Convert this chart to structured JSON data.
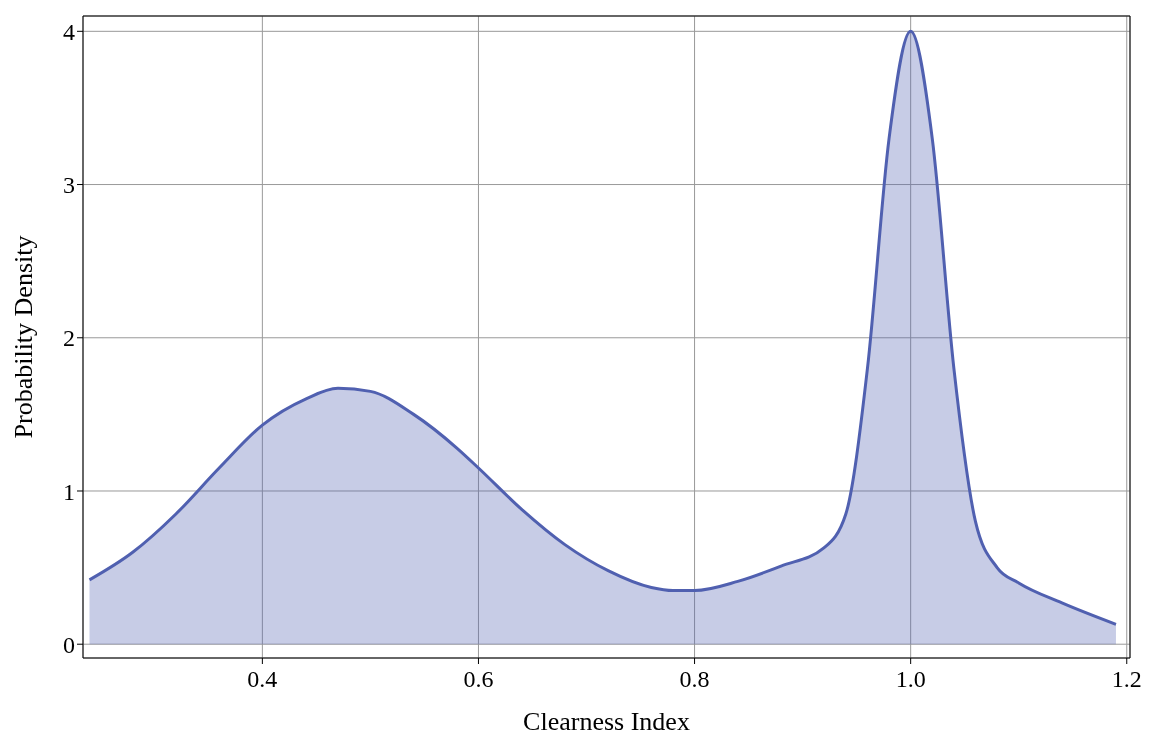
{
  "chart_data": {
    "type": "area",
    "xlabel": "Clearness Index",
    "ylabel": "Probability Density",
    "x": [
      0.24,
      0.28,
      0.32,
      0.36,
      0.4,
      0.44,
      0.47,
      0.5,
      0.54,
      0.58,
      0.6,
      0.64,
      0.68,
      0.72,
      0.76,
      0.78,
      0.8,
      0.84,
      0.88,
      0.92,
      0.94,
      0.96,
      0.98,
      1.0,
      1.02,
      1.04,
      1.06,
      1.08,
      1.1,
      1.14,
      1.19
    ],
    "series": [
      {
        "color": "#5060b0",
        "values": [
          0.42,
          0.6,
          0.85,
          1.15,
          1.43,
          1.6,
          1.67,
          1.65,
          1.5,
          1.28,
          1.15,
          0.88,
          0.65,
          0.48,
          0.37,
          0.35,
          0.35,
          0.41,
          0.51,
          0.63,
          0.85,
          1.8,
          3.3,
          4.0,
          3.3,
          1.8,
          0.8,
          0.5,
          0.4,
          0.27,
          0.13
        ]
      }
    ],
    "xlim": [
      0.234,
      1.203
    ],
    "xticks": [
      {
        "value": 0.4,
        "label": "0.4"
      },
      {
        "value": 0.6,
        "label": "0.6"
      },
      {
        "value": 0.8,
        "label": "0.8"
      },
      {
        "value": 1.0,
        "label": "1.0"
      },
      {
        "value": 1.2,
        "label": "1.2"
      }
    ],
    "ylim": [
      -0.09,
      4.1
    ],
    "yticks": [
      0,
      1,
      2,
      3,
      4
    ],
    "grid": true
  }
}
